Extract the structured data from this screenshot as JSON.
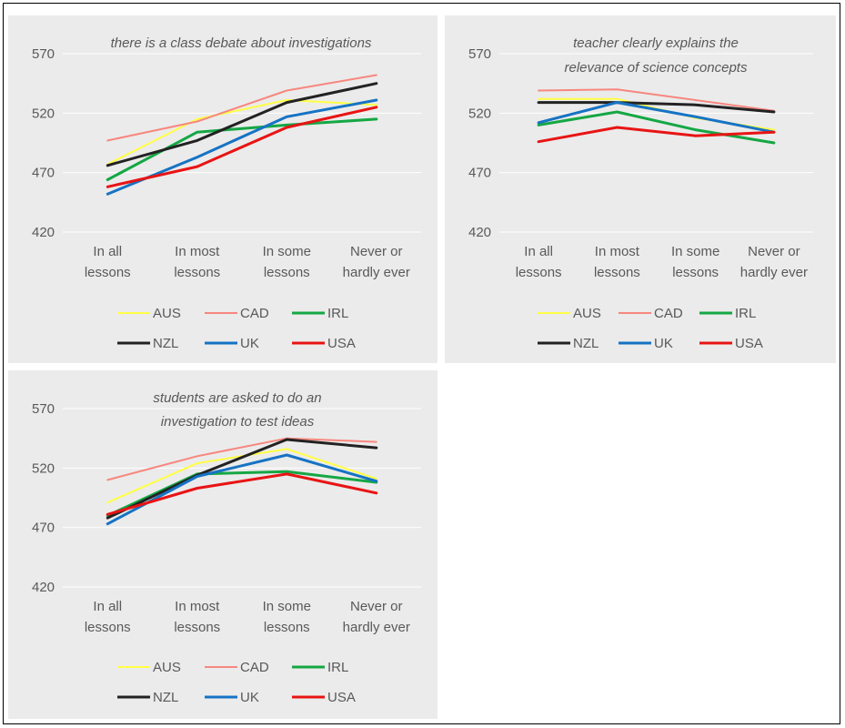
{
  "colors": {
    "panel_bg": "#ebebeb",
    "gridline": "#ffffff",
    "text": "#595959",
    "AUS": "#ffff44",
    "CAD": "#f7877e",
    "IRL": "#15a744",
    "NZL": "#222222",
    "UK": "#1673c4",
    "USA": "#e81414"
  },
  "chart_data": [
    {
      "type": "line",
      "title": "there is a class debate about investigations",
      "categories": [
        "In all lessons",
        "In most lessons",
        "In some lessons",
        "Never or hardly ever"
      ],
      "category_lines": [
        [
          "In all",
          "lessons"
        ],
        [
          "In most",
          "lessons"
        ],
        [
          "In some",
          "lessons"
        ],
        [
          "Never or",
          "hardly ever"
        ]
      ],
      "ylim": [
        420,
        570
      ],
      "yticks": [
        "420",
        "470",
        "520",
        "570"
      ],
      "grid": true,
      "legend_position": "bottom",
      "legend_rows": [
        [
          "AUS",
          "CAD",
          "IRL"
        ],
        [
          "NZL",
          "UK",
          "USA"
        ]
      ],
      "series": [
        {
          "name": "AUS",
          "values": [
            477,
            515,
            531,
            527
          ]
        },
        {
          "name": "CAD",
          "values": [
            497,
            513,
            539,
            552
          ]
        },
        {
          "name": "IRL",
          "values": [
            464,
            504,
            510,
            515
          ]
        },
        {
          "name": "NZL",
          "values": [
            476,
            497,
            529,
            545
          ]
        },
        {
          "name": "UK",
          "values": [
            452,
            483,
            517,
            531
          ]
        },
        {
          "name": "USA",
          "values": [
            458,
            475,
            508,
            525
          ]
        }
      ]
    },
    {
      "type": "line",
      "title": "teacher clearly explains the relevance of science concepts",
      "categories": [
        "In all lessons",
        "In most lessons",
        "In some lessons",
        "Never or hardly ever"
      ],
      "category_lines": [
        [
          "In all",
          "lessons"
        ],
        [
          "In most",
          "lessons"
        ],
        [
          "In some",
          "lessons"
        ],
        [
          "Never or",
          "hardly ever"
        ]
      ],
      "ylim": [
        420,
        570
      ],
      "yticks": [
        "420",
        "470",
        "520",
        "570"
      ],
      "grid": true,
      "legend_position": "bottom",
      "legend_rows": [
        [
          "AUS",
          "CAD",
          "IRL"
        ],
        [
          "NZL",
          "UK",
          "USA"
        ]
      ],
      "series": [
        {
          "name": "AUS",
          "values": [
            532,
            532,
            516,
            506
          ]
        },
        {
          "name": "CAD",
          "values": [
            539,
            540,
            531,
            522
          ]
        },
        {
          "name": "IRL",
          "values": [
            510,
            521,
            506,
            495
          ]
        },
        {
          "name": "NZL",
          "values": [
            529,
            529,
            527,
            521
          ]
        },
        {
          "name": "UK",
          "values": [
            512,
            529,
            517,
            504
          ]
        },
        {
          "name": "USA",
          "values": [
            496,
            508,
            501,
            504
          ]
        }
      ]
    },
    {
      "type": "line",
      "title": "students are asked to do an investigation to test ideas",
      "categories": [
        "In all lessons",
        "In most lessons",
        "In some lessons",
        "Never or hardly ever"
      ],
      "category_lines": [
        [
          "In all",
          "lessons"
        ],
        [
          "In most",
          "lessons"
        ],
        [
          "In some",
          "lessons"
        ],
        [
          "Never or",
          "hardly ever"
        ]
      ],
      "ylim": [
        420,
        570
      ],
      "yticks": [
        "420",
        "470",
        "520",
        "570"
      ],
      "grid": true,
      "legend_position": "bottom",
      "legend_rows": [
        [
          "AUS",
          "CAD",
          "IRL"
        ],
        [
          "NZL",
          "UK",
          "USA"
        ]
      ],
      "series": [
        {
          "name": "AUS",
          "values": [
            491,
            524,
            536,
            511
          ]
        },
        {
          "name": "CAD",
          "values": [
            510,
            530,
            545,
            542
          ]
        },
        {
          "name": "IRL",
          "values": [
            480,
            515,
            517,
            508
          ]
        },
        {
          "name": "NZL",
          "values": [
            478,
            514,
            544,
            537
          ]
        },
        {
          "name": "UK",
          "values": [
            473,
            513,
            531,
            509
          ]
        },
        {
          "name": "USA",
          "values": [
            481,
            503,
            515,
            499
          ]
        }
      ]
    }
  ]
}
